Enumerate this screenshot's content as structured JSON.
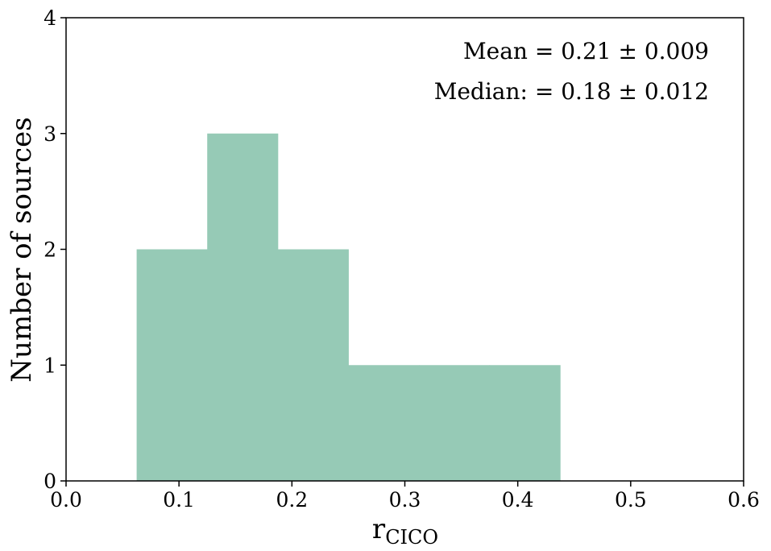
{
  "chart_data": {
    "type": "bar",
    "bins": [
      {
        "x0": 0.0625,
        "x1": 0.125,
        "count": 2
      },
      {
        "x0": 0.125,
        "x1": 0.1875,
        "count": 3
      },
      {
        "x0": 0.1875,
        "x1": 0.25,
        "count": 2
      },
      {
        "x0": 0.25,
        "x1": 0.3125,
        "count": 1
      },
      {
        "x0": 0.3125,
        "x1": 0.375,
        "count": 1
      },
      {
        "x0": 0.375,
        "x1": 0.4375,
        "count": 1
      }
    ],
    "bar_color": "#96cab6",
    "xlim": [
      0.0,
      0.6
    ],
    "ylim": [
      0,
      4
    ],
    "xticks": [
      "0.0",
      "0.1",
      "0.2",
      "0.3",
      "0.4",
      "0.5",
      "0.6"
    ],
    "yticks": [
      "0",
      "1",
      "2",
      "3",
      "4"
    ],
    "xlabel_main": "r",
    "xlabel_sub": "CICO",
    "ylabel": "Number of sources",
    "annotations": [
      "Mean = 0.21 ± 0.009",
      "Median: = 0.18 ± 0.012"
    ]
  }
}
